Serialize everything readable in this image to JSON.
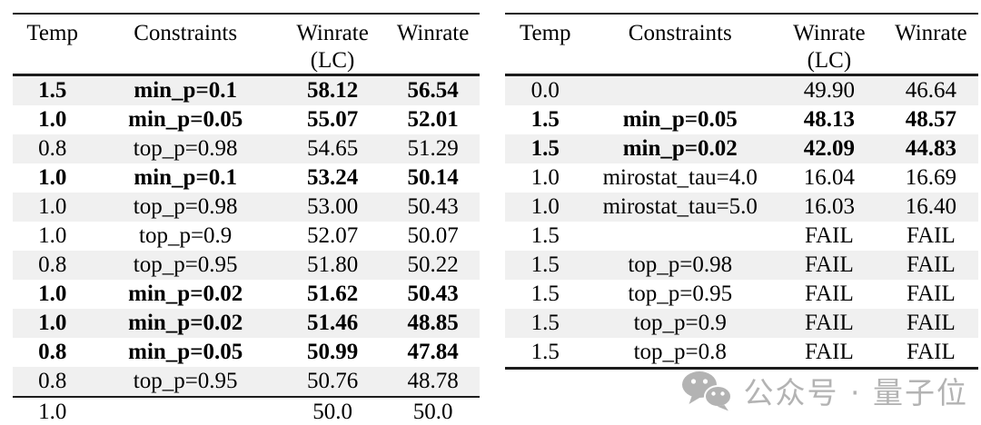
{
  "colors": {
    "stripe": "#f0f0f0",
    "rule": "#1c1c1c",
    "text": "#000000",
    "watermark_gray": "#b3b3b3"
  },
  "watermark": {
    "icon": "wechat-icon",
    "text": "公众号 · 量子位"
  },
  "tables": [
    {
      "name": "left",
      "headers": [
        "Temp",
        "Constraints",
        "Winrate\n(LC)",
        "Winrate"
      ],
      "rows": [
        {
          "temp": "1.5",
          "constraints": "min_p=0.1",
          "winrate_lc": "58.12",
          "winrate": "56.54",
          "bold": true
        },
        {
          "temp": "1.0",
          "constraints": "min_p=0.05",
          "winrate_lc": "55.07",
          "winrate": "52.01",
          "bold": true
        },
        {
          "temp": "0.8",
          "constraints": "top_p=0.98",
          "winrate_lc": "54.65",
          "winrate": "51.29",
          "bold": false
        },
        {
          "temp": "1.0",
          "constraints": "min_p=0.1",
          "winrate_lc": "53.24",
          "winrate": "50.14",
          "bold": true
        },
        {
          "temp": "1.0",
          "constraints": "top_p=0.98",
          "winrate_lc": "53.00",
          "winrate": "50.43",
          "bold": false
        },
        {
          "temp": "1.0",
          "constraints": "top_p=0.9",
          "winrate_lc": "52.07",
          "winrate": "50.07",
          "bold": false
        },
        {
          "temp": "0.8",
          "constraints": "top_p=0.95",
          "winrate_lc": "51.80",
          "winrate": "50.22",
          "bold": false
        },
        {
          "temp": "1.0",
          "constraints": "min_p=0.02",
          "winrate_lc": "51.62",
          "winrate": "50.43",
          "bold": true
        },
        {
          "temp": "1.0",
          "constraints": "min_p=0.02",
          "winrate_lc": "51.46",
          "winrate": "48.85",
          "bold": true
        },
        {
          "temp": "0.8",
          "constraints": "min_p=0.05",
          "winrate_lc": "50.99",
          "winrate": "47.84",
          "bold": true
        },
        {
          "temp": "0.8",
          "constraints": "top_p=0.95",
          "winrate_lc": "50.76",
          "winrate": "48.78",
          "bold": false
        },
        {
          "temp": "1.0",
          "constraints": "",
          "winrate_lc": "50.0",
          "winrate": "50.0",
          "bold": false,
          "rule_above": true
        }
      ]
    },
    {
      "name": "right",
      "headers": [
        "Temp",
        "Constraints",
        "Winrate\n(LC)",
        "Winrate"
      ],
      "rows": [
        {
          "temp": "0.0",
          "constraints": "",
          "winrate_lc": "49.90",
          "winrate": "46.64",
          "bold": false
        },
        {
          "temp": "1.5",
          "constraints": "min_p=0.05",
          "winrate_lc": "48.13",
          "winrate": "48.57",
          "bold": true
        },
        {
          "temp": "1.5",
          "constraints": "min_p=0.02",
          "winrate_lc": "42.09",
          "winrate": "44.83",
          "bold": true
        },
        {
          "temp": "1.0",
          "constraints": "mirostat_tau=4.0",
          "winrate_lc": "16.04",
          "winrate": "16.69",
          "bold": false
        },
        {
          "temp": "1.0",
          "constraints": "mirostat_tau=5.0",
          "winrate_lc": "16.03",
          "winrate": "16.40",
          "bold": false
        },
        {
          "temp": "1.5",
          "constraints": "",
          "winrate_lc": "FAIL",
          "winrate": "FAIL",
          "bold": false
        },
        {
          "temp": "1.5",
          "constraints": "top_p=0.98",
          "winrate_lc": "FAIL",
          "winrate": "FAIL",
          "bold": false
        },
        {
          "temp": "1.5",
          "constraints": "top_p=0.95",
          "winrate_lc": "FAIL",
          "winrate": "FAIL",
          "bold": false
        },
        {
          "temp": "1.5",
          "constraints": "top_p=0.9",
          "winrate_lc": "FAIL",
          "winrate": "FAIL",
          "bold": false
        },
        {
          "temp": "1.5",
          "constraints": "top_p=0.8",
          "winrate_lc": "FAIL",
          "winrate": "FAIL",
          "bold": false
        }
      ]
    }
  ]
}
